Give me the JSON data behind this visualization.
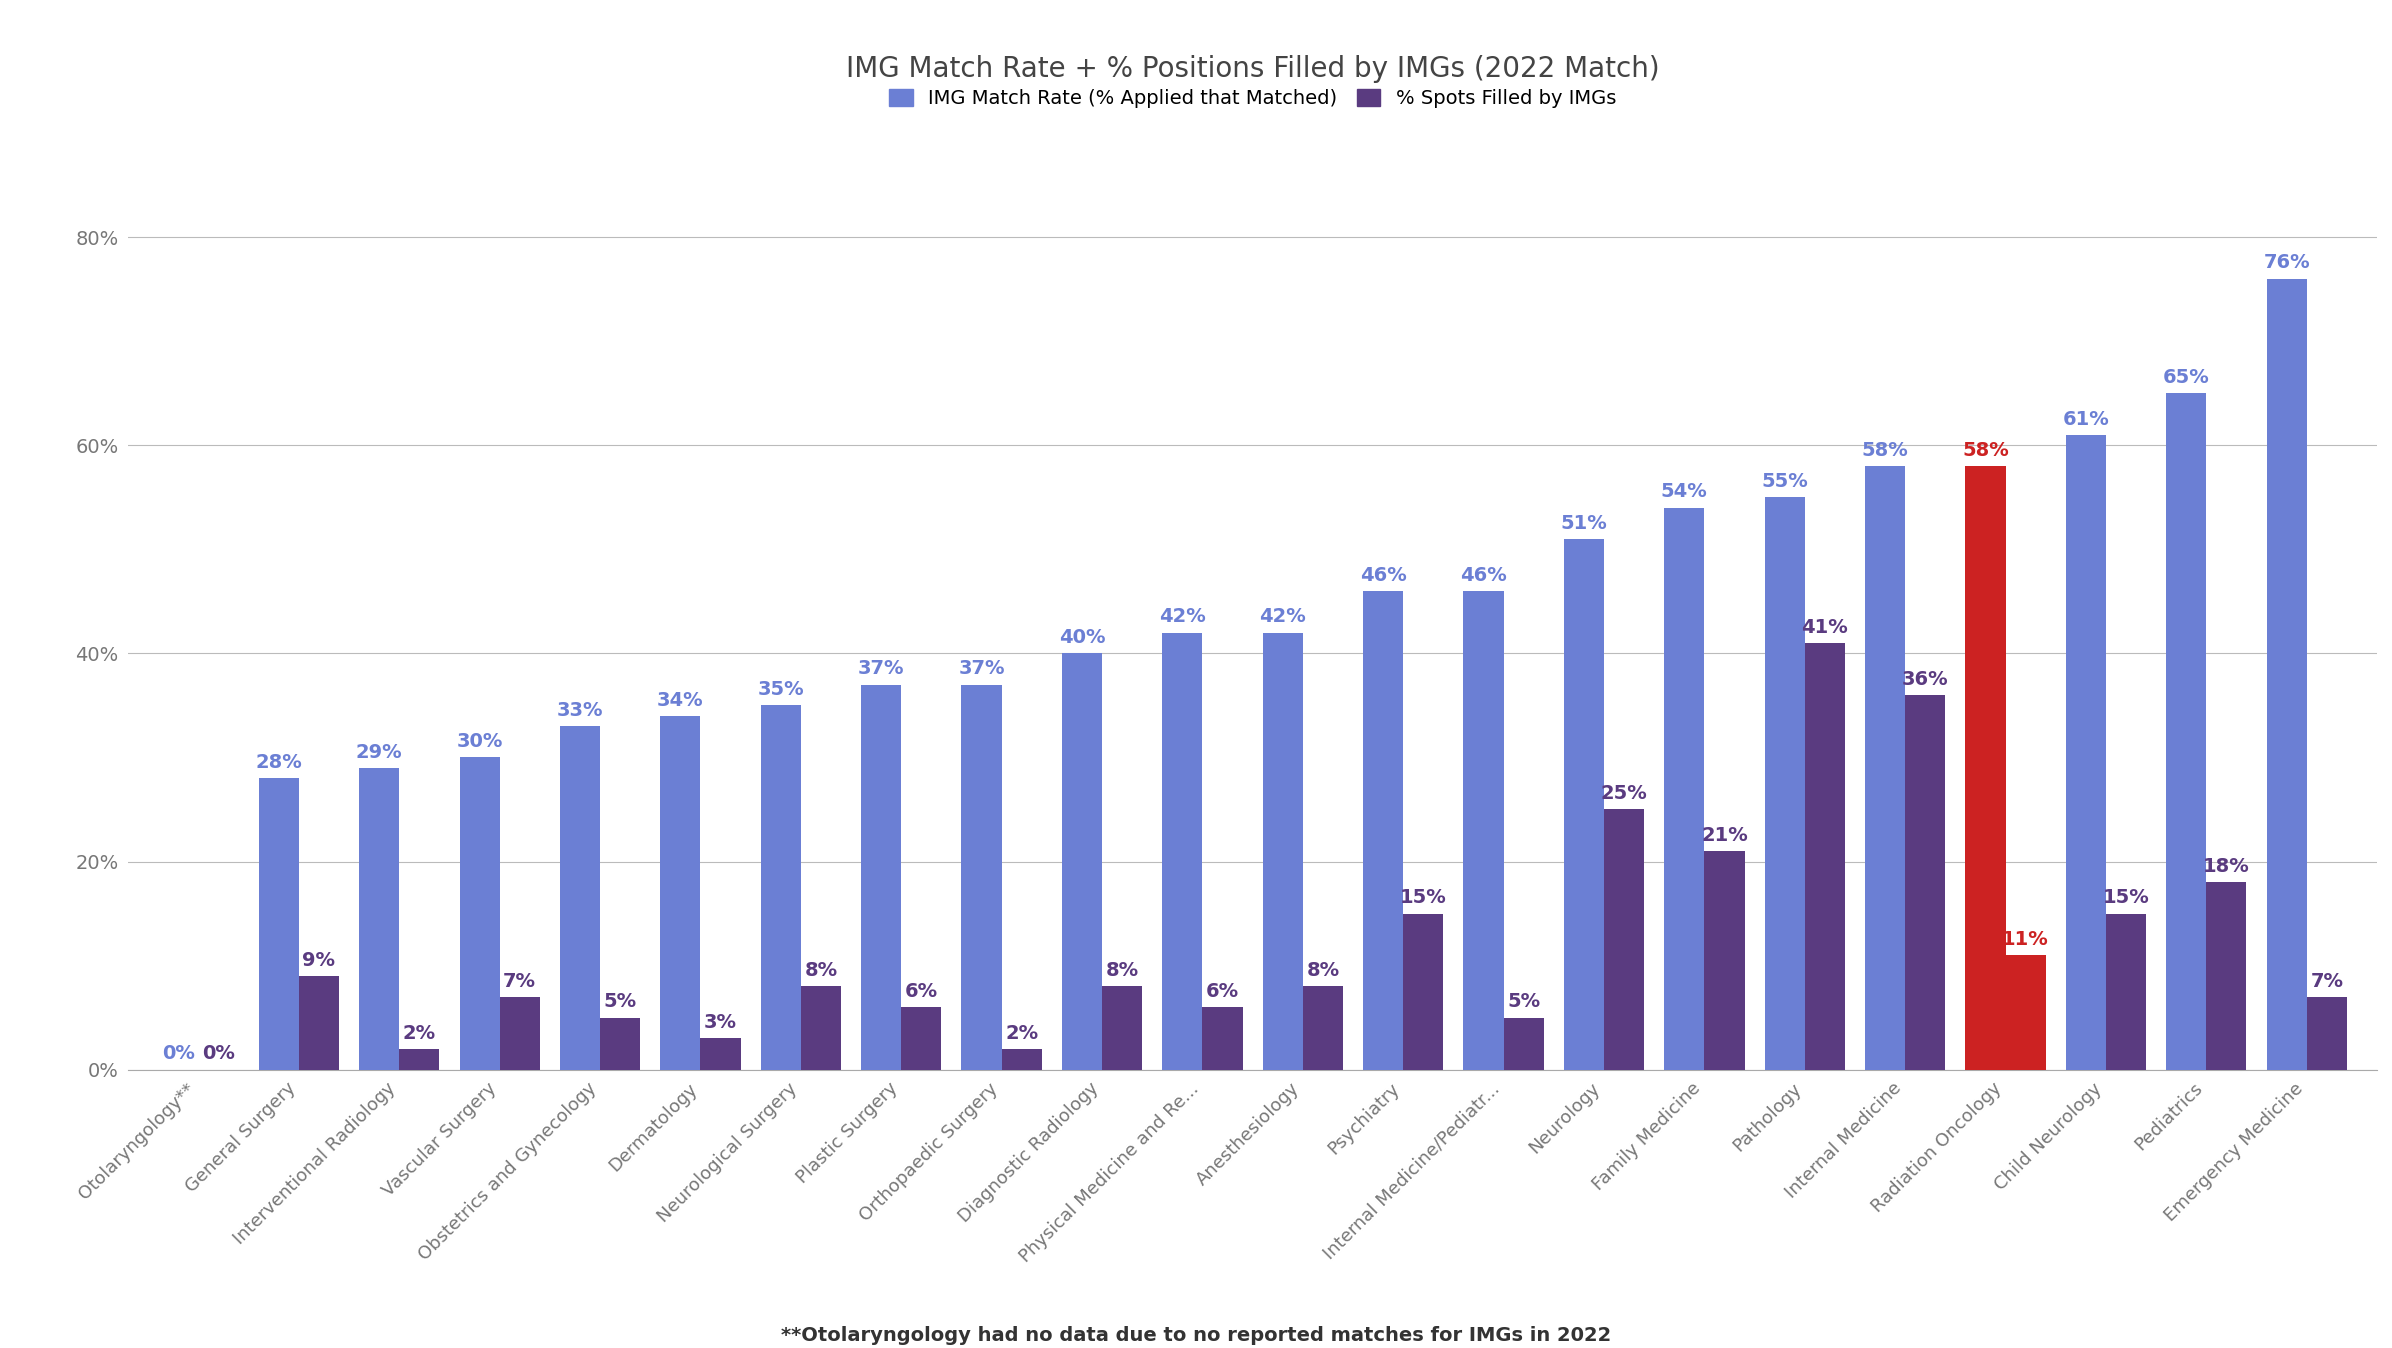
{
  "title": "IMG Match Rate + % Positions Filled by IMGs (2022 Match)",
  "legend_labels": [
    "IMG Match Rate (% Applied that Matched)",
    "% Spots Filled by IMGs"
  ],
  "legend_colors": [
    "#6b7fd4",
    "#5a3b80"
  ],
  "footnote": "**Otolaryngology had no data due to no reported matches for IMGs in 2022",
  "categories": [
    "Otolaryngology**",
    "General Surgery",
    "Interventional Radiology",
    "Vascular Surgery",
    "Obstetrics and Gynecology",
    "Dermatology",
    "Neurological Surgery",
    "Plastic Surgery",
    "Orthopaedic Surgery",
    "Diagnostic Radiology",
    "Physical Medicine and Re...",
    "Anesthesiology",
    "Psychiatry",
    "Internal Medicine/Pediatr...",
    "Neurology",
    "Family Medicine",
    "Pathology",
    "Internal Medicine",
    "Radiation Oncology",
    "Child Neurology",
    "Pediatrics",
    "Emergency Medicine"
  ],
  "match_rate": [
    0,
    28,
    29,
    30,
    33,
    34,
    35,
    37,
    37,
    40,
    42,
    42,
    46,
    46,
    51,
    54,
    55,
    58,
    58,
    61,
    65,
    76
  ],
  "spots_filled": [
    0,
    9,
    2,
    7,
    5,
    3,
    8,
    6,
    2,
    8,
    6,
    8,
    15,
    5,
    25,
    21,
    41,
    36,
    11,
    15,
    18,
    7
  ],
  "bar_color_match": "#6b7fd4",
  "bar_color_spots": "#5a3b80",
  "radiation_oncology_color": "#cc2222",
  "ylim": [
    0,
    88
  ],
  "yticks": [
    0,
    20,
    40,
    60,
    80
  ],
  "ytick_labels": [
    "0%",
    "20%",
    "40%",
    "60%",
    "80%"
  ],
  "background_color": "#ffffff",
  "grid_color": "#bbbbbb",
  "label_fontsize_match": 14,
  "label_fontsize_spots": 14,
  "title_fontsize": 20,
  "legend_fontsize": 14,
  "tick_fontsize": 14,
  "xtick_fontsize": 13,
  "footnote_fontsize": 14
}
